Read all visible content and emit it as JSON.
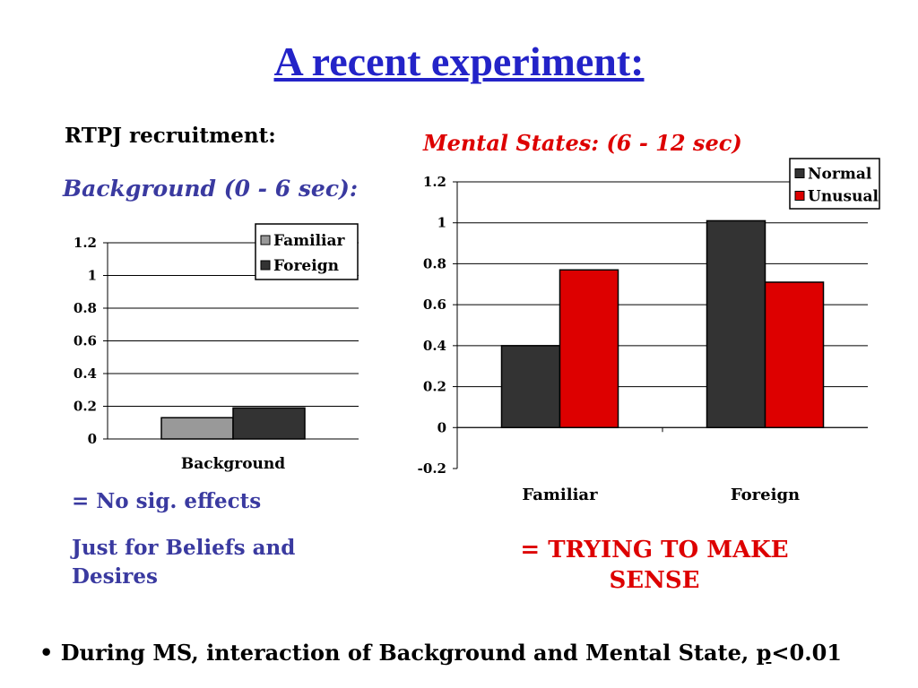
{
  "slide": {
    "title": "A recent experiment:",
    "rtpj_label": "RTPJ recruitment:",
    "background_heading": "Background (0 - 6 sec):",
    "mental_states_heading": "Mental States: (6 - 12 sec)",
    "no_sig": "= No sig. effects",
    "beliefs": "Just for Beliefs and Desires",
    "trying": "= TRYING TO MAKE SENSE",
    "footer_bullet": "•",
    "footer_main": "During MS, interaction of Background and Mental State,",
    "footer_p": "p",
    "footer_tail": "<0.01"
  },
  "chart_data": [
    {
      "type": "bar",
      "categories": [
        "Background"
      ],
      "series": [
        {
          "name": "Familiar",
          "values": [
            0.13
          ],
          "color": "#999999"
        },
        {
          "name": "Foreign",
          "values": [
            0.19
          ],
          "color": "#333333"
        }
      ],
      "ylim": [
        0,
        1.2
      ],
      "yticks": [
        0,
        0.2,
        0.4,
        0.6,
        0.8,
        1,
        1.2
      ],
      "ytick_labels": [
        "0",
        "0.2",
        "0.4",
        "0.6",
        "0.8",
        "1",
        "1.2"
      ],
      "grid": true,
      "legend": "top-right"
    },
    {
      "type": "bar",
      "categories": [
        "Familiar",
        "Foreign"
      ],
      "series": [
        {
          "name": "Normal",
          "values": [
            0.4,
            1.01
          ],
          "color": "#333333"
        },
        {
          "name": "Unusual",
          "values": [
            0.77,
            0.71
          ],
          "color": "#dd0000"
        }
      ],
      "ylim": [
        -0.2,
        1.2
      ],
      "yticks": [
        -0.2,
        0,
        0.2,
        0.4,
        0.6,
        0.8,
        1,
        1.2
      ],
      "ytick_labels": [
        "-0.2",
        "0",
        "0.2",
        "0.4",
        "0.6",
        "0.8",
        "1",
        "1.2"
      ],
      "grid": true,
      "legend": "top-right"
    }
  ]
}
